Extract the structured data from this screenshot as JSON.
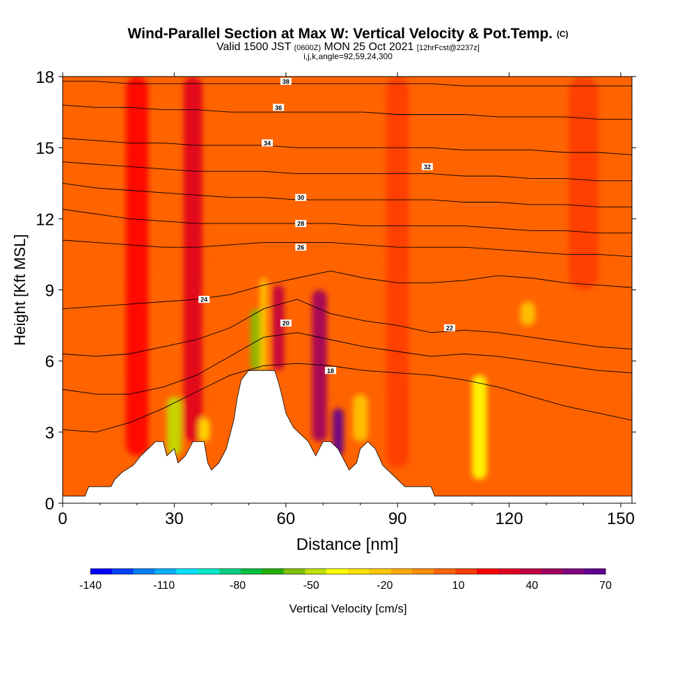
{
  "header": {
    "title": "Wind-Parallel Section at Max W: Vertical Velocity & Pot.Temp.",
    "title_unit": "(C)",
    "valid_prefix": "Valid 1500 JST",
    "valid_utc": "(0600Z)",
    "valid_date": "MON 25 Oct 2021",
    "forecast": "[12hrFcst@2237z]",
    "indices": "i,j,k,angle=92,59,24,300"
  },
  "chart_data": {
    "type": "heatmap",
    "xlabel": "Distance [nm]",
    "ylabel": "Height [Kft MSL]",
    "xlim": [
      0,
      153
    ],
    "ylim": [
      0,
      18
    ],
    "xticks": [
      0,
      30,
      60,
      90,
      120,
      150
    ],
    "yticks": [
      0,
      3,
      6,
      9,
      12,
      15,
      18
    ],
    "colorbar": {
      "label": "Vertical Velocity [cm/s]",
      "tick_labels": [
        "-140",
        "-110",
        "-80",
        "-50",
        "-20",
        "10",
        "40",
        "70"
      ],
      "colors": [
        "#0000ff",
        "#0040ff",
        "#0080ff",
        "#00b0ff",
        "#00e0ff",
        "#00e6c8",
        "#00d080",
        "#00c040",
        "#20b000",
        "#80c000",
        "#c0e000",
        "#ffff00",
        "#ffe000",
        "#ffc800",
        "#ffa800",
        "#ff8c00",
        "#ff6400",
        "#ff3c00",
        "#ff0000",
        "#e00020",
        "#c00040",
        "#a00060",
        "#800080",
        "#600090"
      ]
    },
    "terrain_profile": [
      [
        0,
        0.3
      ],
      [
        6,
        0.3
      ],
      [
        7,
        0.7
      ],
      [
        13,
        0.7
      ],
      [
        14,
        1.0
      ],
      [
        16,
        1.3
      ],
      [
        19,
        1.6
      ],
      [
        21,
        2.0
      ],
      [
        23,
        2.3
      ],
      [
        25,
        2.6
      ],
      [
        27,
        2.6
      ],
      [
        28,
        2.0
      ],
      [
        30,
        2.3
      ],
      [
        31,
        1.7
      ],
      [
        33,
        2.0
      ],
      [
        35,
        2.6
      ],
      [
        38,
        2.6
      ],
      [
        39,
        1.7
      ],
      [
        40,
        1.4
      ],
      [
        42,
        1.7
      ],
      [
        44,
        2.3
      ],
      [
        46,
        3.5
      ],
      [
        47,
        4.5
      ],
      [
        48,
        5.2
      ],
      [
        50,
        5.6
      ],
      [
        57,
        5.6
      ],
      [
        58,
        5.1
      ],
      [
        59,
        4.5
      ],
      [
        60,
        3.8
      ],
      [
        61,
        3.5
      ],
      [
        62,
        3.2
      ],
      [
        64,
        2.9
      ],
      [
        66,
        2.6
      ],
      [
        67,
        2.3
      ],
      [
        68,
        2.0
      ],
      [
        70,
        2.6
      ],
      [
        72,
        2.6
      ],
      [
        74,
        2.3
      ],
      [
        76,
        1.7
      ],
      [
        77,
        1.4
      ],
      [
        79,
        1.7
      ],
      [
        80,
        2.3
      ],
      [
        82,
        2.6
      ],
      [
        84,
        2.3
      ],
      [
        86,
        1.6
      ],
      [
        88,
        1.3
      ],
      [
        90,
        1.0
      ],
      [
        92,
        0.7
      ],
      [
        99,
        0.7
      ],
      [
        100,
        0.3
      ],
      [
        153,
        0.3
      ]
    ],
    "theta_contours": [
      {
        "label": "18",
        "y": [
          3.1,
          3.0,
          3.4,
          4.0,
          4.7,
          5.4,
          5.8,
          5.9,
          5.8,
          5.6,
          5.5,
          5.4,
          5.2,
          4.9,
          4.5,
          4.1,
          3.8,
          3.5
        ],
        "label_at": [
          72,
          5.6
        ]
      },
      {
        "label": "20",
        "y": [
          4.8,
          4.6,
          4.6,
          4.9,
          5.4,
          6.2,
          7.0,
          7.2,
          6.9,
          6.6,
          6.4,
          6.2,
          6.3,
          6.2,
          6.0,
          5.8,
          5.6,
          5.5
        ],
        "label_at": [
          60,
          7.6
        ]
      },
      {
        "label": "22",
        "y": [
          6.3,
          6.2,
          6.3,
          6.6,
          6.9,
          7.4,
          8.2,
          8.6,
          8.0,
          7.7,
          7.5,
          7.2,
          7.3,
          7.2,
          7.0,
          6.8,
          6.6,
          6.5
        ],
        "label_at": [
          104,
          7.4
        ]
      },
      {
        "label": "24",
        "y": [
          8.2,
          8.3,
          8.4,
          8.5,
          8.6,
          8.8,
          9.2,
          9.5,
          9.8,
          9.5,
          9.3,
          9.3,
          9.4,
          9.6,
          9.5,
          9.3,
          9.2,
          9.1
        ],
        "label_at": [
          38,
          8.6
        ]
      },
      {
        "label": "26",
        "y": [
          11.1,
          11.0,
          10.9,
          10.8,
          10.8,
          10.9,
          11.0,
          11.0,
          11.0,
          10.9,
          10.8,
          10.8,
          10.8,
          10.7,
          10.6,
          10.5,
          10.5,
          10.4
        ],
        "label_at": [
          64,
          10.8
        ]
      },
      {
        "label": "28",
        "y": [
          12.4,
          12.2,
          12.0,
          11.9,
          11.8,
          11.8,
          11.8,
          11.8,
          11.8,
          11.7,
          11.7,
          11.7,
          11.7,
          11.6,
          11.5,
          11.5,
          11.4,
          11.4
        ],
        "label_at": [
          64,
          11.8
        ]
      },
      {
        "label": "30",
        "y": [
          13.5,
          13.3,
          13.2,
          13.1,
          13.0,
          12.9,
          12.9,
          12.8,
          12.8,
          12.8,
          12.8,
          12.8,
          12.7,
          12.7,
          12.6,
          12.6,
          12.5,
          12.5
        ],
        "label_at": [
          64,
          12.9
        ]
      },
      {
        "label": "32",
        "y": [
          14.4,
          14.3,
          14.2,
          14.1,
          14.0,
          14.0,
          14.0,
          13.9,
          13.9,
          13.9,
          13.9,
          13.9,
          13.8,
          13.8,
          13.7,
          13.7,
          13.6,
          13.6
        ],
        "label_at": [
          98,
          14.2
        ]
      },
      {
        "label": "34",
        "y": [
          15.4,
          15.3,
          15.2,
          15.2,
          15.1,
          15.1,
          15.1,
          15.0,
          15.0,
          15.0,
          15.0,
          15.0,
          14.9,
          14.9,
          14.9,
          14.8,
          14.8,
          14.7
        ],
        "label_at": [
          55,
          15.2
        ]
      },
      {
        "label": "36",
        "y": [
          16.8,
          16.7,
          16.7,
          16.6,
          16.6,
          16.5,
          16.5,
          16.5,
          16.5,
          16.5,
          16.4,
          16.4,
          16.4,
          16.3,
          16.3,
          16.3,
          16.2,
          16.2
        ],
        "label_at": [
          58,
          16.7
        ]
      },
      {
        "label": "38",
        "y": [
          17.8,
          17.8,
          17.7,
          17.7,
          17.7,
          17.7,
          17.7,
          17.7,
          17.7,
          17.7,
          17.7,
          17.7,
          17.6,
          17.6,
          17.6,
          17.6,
          17.6,
          17.6
        ],
        "label_at": [
          60,
          17.8
        ]
      }
    ],
    "updraft_cores": [
      {
        "x": 20,
        "y0": 2.0,
        "y1": 18,
        "w": 6,
        "w_value": 25
      },
      {
        "x": 35,
        "y0": 2.6,
        "y1": 18,
        "w": 5,
        "w_value": 30
      },
      {
        "x": 58,
        "y0": 5.6,
        "y1": 9.2,
        "w": 3,
        "w_value": 35
      },
      {
        "x": 69,
        "y0": 2.6,
        "y1": 9.0,
        "w": 4,
        "w_value": 50
      },
      {
        "x": 74,
        "y0": 2.0,
        "y1": 4.0,
        "w": 3,
        "w_value": 70
      },
      {
        "x": 90,
        "y0": 1.5,
        "y1": 18,
        "w": 6,
        "w_value": 10
      },
      {
        "x": 140,
        "y0": 9.0,
        "y1": 18,
        "w": 8,
        "w_value": 15
      }
    ],
    "downdraft_cores": [
      {
        "x": 30,
        "y0": 2.0,
        "y1": 4.5,
        "w": 4,
        "w_value": -45
      },
      {
        "x": 38,
        "y0": 2.6,
        "y1": 3.6,
        "w": 3,
        "w_value": -30
      },
      {
        "x": 52,
        "y0": 5.6,
        "y1": 8.2,
        "w": 3,
        "w_value": -55
      },
      {
        "x": 54,
        "y0": 5.6,
        "y1": 9.5,
        "w": 2,
        "w_value": -25
      },
      {
        "x": 80,
        "y0": 2.6,
        "y1": 4.6,
        "w": 4,
        "w_value": -25
      },
      {
        "x": 112,
        "y0": 1.0,
        "y1": 5.4,
        "w": 4,
        "w_value": -40
      },
      {
        "x": 125,
        "y0": 7.5,
        "y1": 8.5,
        "w": 4,
        "w_value": -20
      }
    ]
  }
}
